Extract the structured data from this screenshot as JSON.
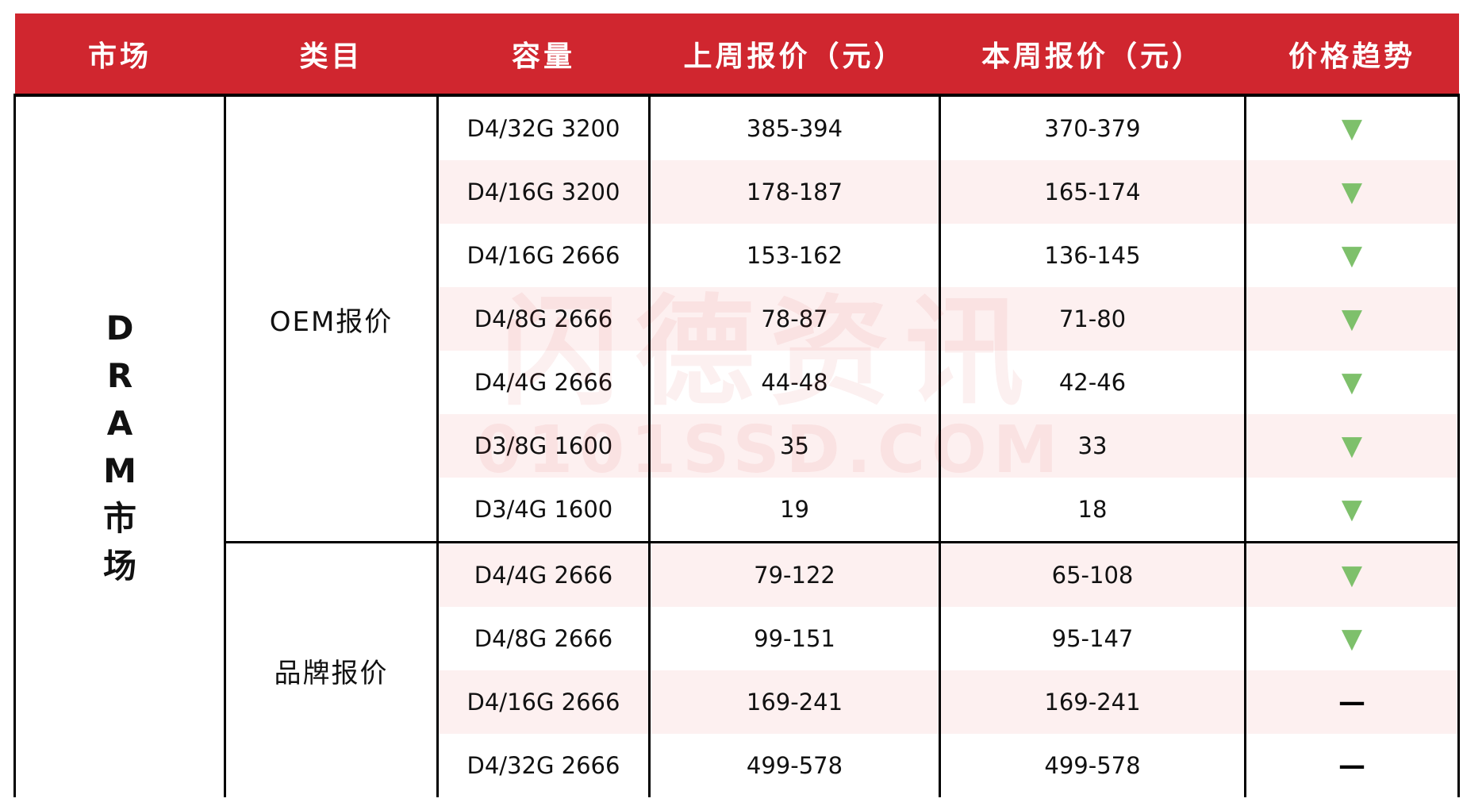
{
  "header": [
    "市场",
    "类目",
    "容量",
    "上周报价（元）",
    "本周报价（元）",
    "价格趋势"
  ],
  "market": "DRAM市场",
  "groups": [
    {
      "category": "OEM报价",
      "rows": [
        [
          "D4/32G 3200",
          "385-394",
          "370-379",
          "▼"
        ],
        [
          "D4/16G 3200",
          "178-187",
          "165-174",
          "▼"
        ],
        [
          "D4/16G 2666",
          "153-162",
          "136-145",
          "▼"
        ],
        [
          "D4/8G 2666",
          "78-87",
          "71-80",
          "▼"
        ],
        [
          "D4/4G 2666",
          "44-48",
          "42-46",
          "▼"
        ],
        [
          "D3/8G 1600",
          "35",
          "33",
          "▼"
        ],
        [
          "D3/4G 1600",
          "19",
          "18",
          "▼"
        ]
      ]
    },
    {
      "category": "品牌报价",
      "rows": [
        [
          "D4/4G 2666",
          "79-122",
          "65-108",
          "▼"
        ],
        [
          "D4/8G 2666",
          "99-151",
          "95-147",
          "▼"
        ],
        [
          "D4/16G 2666",
          "169-241",
          "169-241",
          "—"
        ],
        [
          "D4/32G 2666",
          "499-578",
          "499-578",
          "—"
        ]
      ]
    }
  ],
  "watermark": {
    "name": "闪德资讯",
    "site": "0101SSD.COM"
  }
}
